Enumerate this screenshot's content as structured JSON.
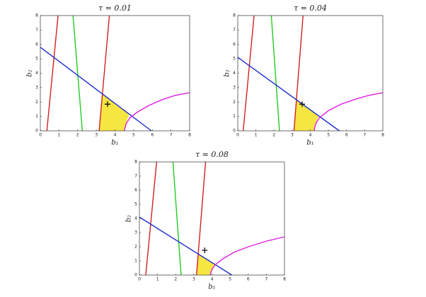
{
  "chart_data": [
    {
      "type": "line",
      "title": "τ = 0.01",
      "xlabel": "b₁",
      "ylabel": "b₂",
      "xlim": [
        0,
        8
      ],
      "ylim": [
        0,
        8
      ],
      "xticks": [
        0,
        1,
        2,
        3,
        4,
        5,
        6,
        7,
        8
      ],
      "yticks": [
        0,
        1,
        2,
        3,
        4,
        5,
        6,
        7,
        8
      ],
      "series": [
        {
          "style": "area",
          "color": "#f5e642",
          "x": [
            3.15,
            3.326,
            4.75,
            4.6,
            4.5
          ],
          "values": [
            0,
            2.56,
            1.17,
            0.5,
            0
          ]
        },
        {
          "style": "line",
          "color": "#d42020",
          "x": [
            0.35,
            0.95
          ],
          "values": [
            0,
            8
          ]
        },
        {
          "style": "line",
          "color": "#d42020",
          "x": [
            3.15,
            3.7
          ],
          "values": [
            0,
            8
          ]
        },
        {
          "style": "line",
          "color": "#22cc22",
          "x": [
            1.75,
            2.25
          ],
          "values": [
            8,
            0
          ]
        },
        {
          "style": "line",
          "color": "#1a2ecc",
          "x": [
            0,
            5.95
          ],
          "values": [
            5.8,
            0
          ]
        },
        {
          "style": "line",
          "color": "#e020e0",
          "x": [
            4.5,
            4.6,
            4.8,
            5.2,
            5.8,
            6.5,
            7.2,
            8
          ],
          "values": [
            0,
            0.5,
            0.9,
            1.3,
            1.75,
            2.15,
            2.45,
            2.65
          ]
        },
        {
          "style": "marker",
          "color": "#111111",
          "x": [
            3.6
          ],
          "values": [
            1.85
          ]
        }
      ]
    },
    {
      "type": "line",
      "title": "τ = 0.04",
      "xlabel": "b₁",
      "ylabel": "b₂",
      "xlim": [
        0,
        8
      ],
      "ylim": [
        0,
        8
      ],
      "xticks": [
        0,
        1,
        2,
        3,
        4,
        5,
        6,
        7,
        8
      ],
      "yticks": [
        0,
        1,
        2,
        3,
        4,
        5,
        6,
        7,
        8
      ],
      "series": [
        {
          "style": "area",
          "color": "#f5e642",
          "x": [
            3.1,
            3.235,
            4.45,
            4.3,
            4.2
          ],
          "values": [
            0,
            2.15,
            1.0,
            0.5,
            0
          ]
        },
        {
          "style": "line",
          "color": "#d42020",
          "x": [
            0.3,
            0.9
          ],
          "values": [
            0,
            8
          ]
        },
        {
          "style": "line",
          "color": "#d42020",
          "x": [
            3.1,
            3.6
          ],
          "values": [
            0,
            8
          ]
        },
        {
          "style": "line",
          "color": "#22cc22",
          "x": [
            1.85,
            2.3
          ],
          "values": [
            8,
            0
          ]
        },
        {
          "style": "line",
          "color": "#1a2ecc",
          "x": [
            0,
            5.6
          ],
          "values": [
            5.1,
            0
          ]
        },
        {
          "style": "line",
          "color": "#e020e0",
          "x": [
            4.2,
            4.3,
            4.5,
            5,
            5.7,
            6.5,
            7.2,
            8
          ],
          "values": [
            0,
            0.5,
            0.9,
            1.4,
            1.85,
            2.2,
            2.45,
            2.65
          ]
        },
        {
          "style": "marker",
          "color": "#111111",
          "x": [
            3.55
          ],
          "values": [
            1.85
          ]
        }
      ]
    },
    {
      "type": "line",
      "title": "τ = 0.08",
      "xlabel": "b₁",
      "ylabel": "b₂",
      "xlim": [
        0,
        8
      ],
      "ylim": [
        0,
        8
      ],
      "xticks": [
        0,
        1,
        2,
        3,
        4,
        5,
        6,
        7,
        8
      ],
      "yticks": [
        0,
        1,
        2,
        3,
        4,
        5,
        6,
        7,
        8
      ],
      "series": [
        {
          "style": "area",
          "color": "#f5e642",
          "x": [
            3.15,
            3.244,
            4.19,
            4,
            3.9
          ],
          "values": [
            0,
            1.49,
            0.73,
            0.4,
            0
          ]
        },
        {
          "style": "line",
          "color": "#d42020",
          "x": [
            0.35,
            0.95
          ],
          "values": [
            0,
            8
          ]
        },
        {
          "style": "line",
          "color": "#d42020",
          "x": [
            3.15,
            3.65
          ],
          "values": [
            0,
            8
          ]
        },
        {
          "style": "line",
          "color": "#22cc22",
          "x": [
            1.85,
            2.3
          ],
          "values": [
            8,
            0
          ]
        },
        {
          "style": "line",
          "color": "#1a2ecc",
          "x": [
            0,
            5.1
          ],
          "values": [
            4.1,
            0
          ]
        },
        {
          "style": "line",
          "color": "#e020e0",
          "x": [
            3.9,
            4,
            4.2,
            4.6,
            5.2,
            6,
            7,
            8
          ],
          "values": [
            0,
            0.4,
            0.75,
            1.15,
            1.6,
            2.0,
            2.4,
            2.7
          ]
        },
        {
          "style": "marker",
          "color": "#111111",
          "x": [
            3.6
          ],
          "values": [
            1.75
          ]
        }
      ]
    }
  ]
}
